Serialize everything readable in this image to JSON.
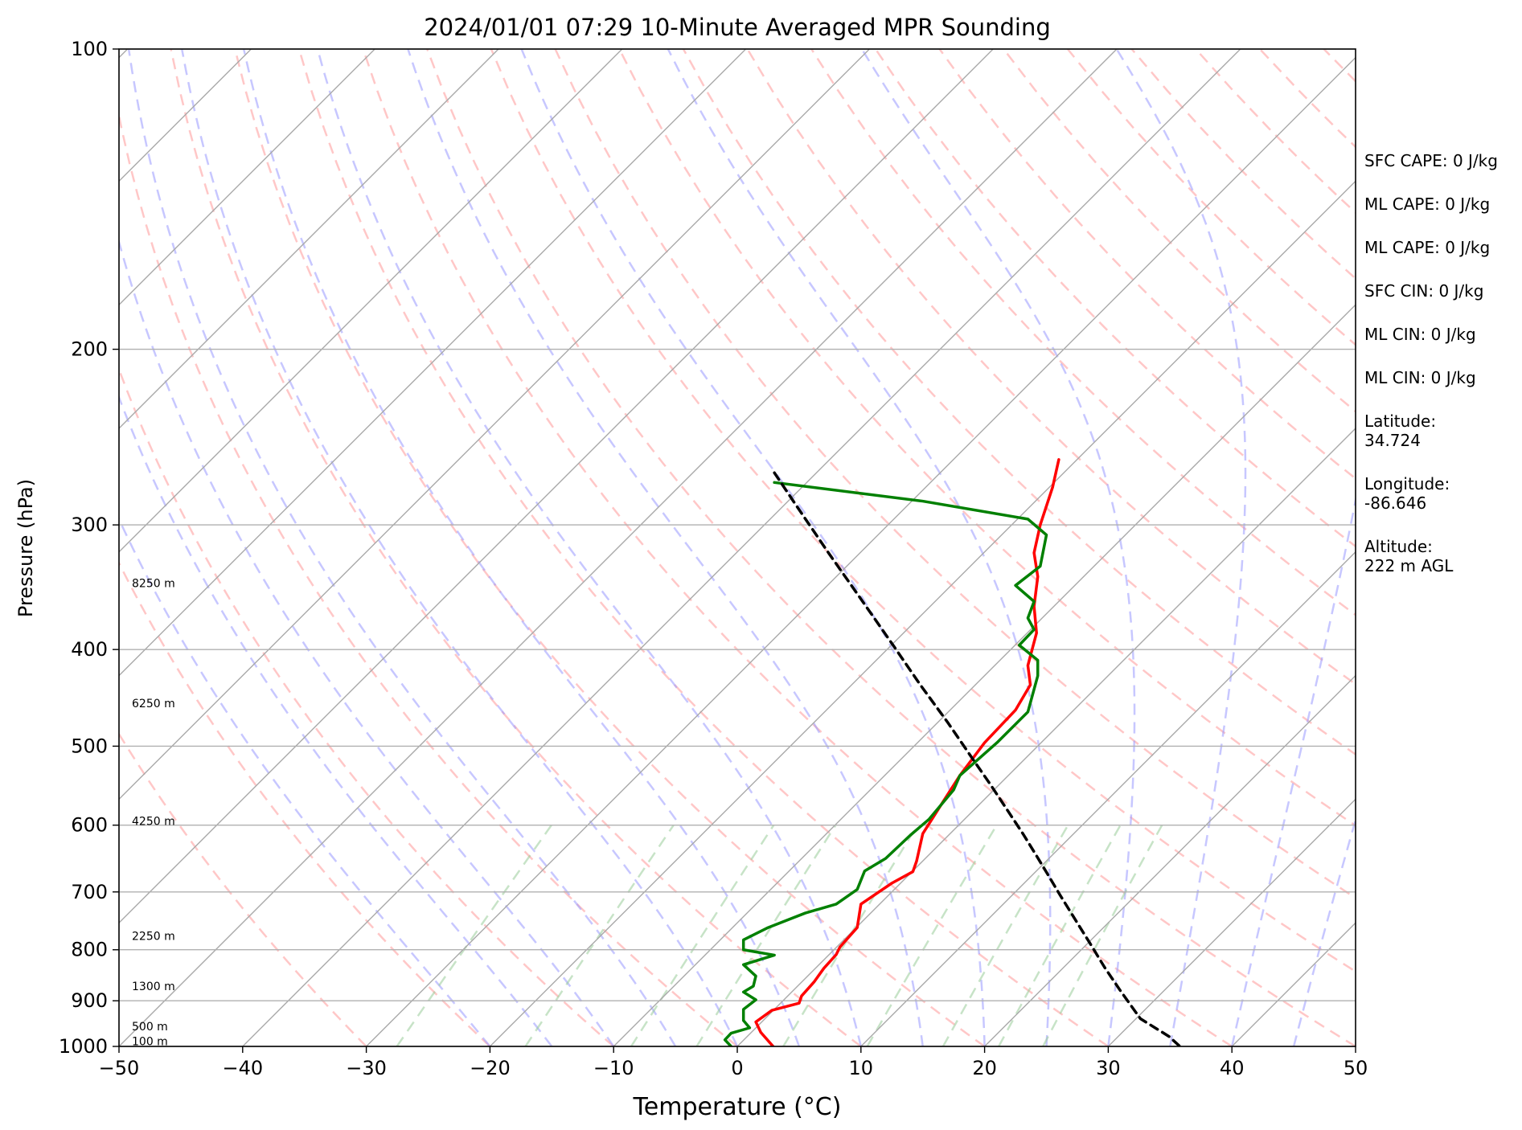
{
  "chart_data": {
    "type": "line",
    "title": "2024/01/01 07:29 10-Minute Averaged MPR Sounding",
    "xlabel": "Temperature (°C)",
    "ylabel": "Pressure (hPa)",
    "xlim": [
      -50,
      50
    ],
    "ylim": [
      1000,
      100
    ],
    "yscale": "log",
    "grid": true,
    "x_ticks": [
      "−50",
      "−40",
      "−30",
      "−20",
      "−10",
      "0",
      "10",
      "20",
      "30",
      "40",
      "50"
    ],
    "y_ticks": [
      "100",
      "200",
      "300",
      "400",
      "500",
      "600",
      "700",
      "800",
      "900",
      "1000"
    ],
    "height_labels": [
      {
        "text": "100 m",
        "pressure": 988
      },
      {
        "text": "500 m",
        "pressure": 955
      },
      {
        "text": "1300 m",
        "pressure": 870
      },
      {
        "text": "2250 m",
        "pressure": 775
      },
      {
        "text": "4250 m",
        "pressure": 594
      },
      {
        "text": "6250 m",
        "pressure": 453
      },
      {
        "text": "8250 m",
        "pressure": 343
      }
    ],
    "colors": {
      "temperature": "#ff0000",
      "dewpoint": "#008000",
      "parcel": "#000000",
      "isotherm": "#a9a9a9",
      "dry_adiabat": "#ff9999",
      "moist_adiabat": "#9999ff",
      "mixing_ratio": "#99cc99"
    },
    "series": [
      {
        "style": "solid",
        "color": "#ff0000",
        "points": [
          [
            26.0,
            258
          ],
          [
            25.5,
            275
          ],
          [
            24.5,
            300
          ],
          [
            24.0,
            320
          ],
          [
            24.3,
            338
          ],
          [
            24.0,
            362
          ],
          [
            24.2,
            385
          ],
          [
            23.5,
            415
          ],
          [
            23.7,
            434
          ],
          [
            22.5,
            460
          ],
          [
            20.0,
            496
          ],
          [
            18.0,
            535
          ],
          [
            16.5,
            572
          ],
          [
            15.0,
            612
          ],
          [
            14.5,
            652
          ],
          [
            14.2,
            668
          ],
          [
            12.5,
            686
          ],
          [
            10.0,
            720
          ],
          [
            9.7,
            760
          ],
          [
            8.3,
            795
          ],
          [
            8.0,
            809
          ],
          [
            7.0,
            835
          ],
          [
            6.2,
            862
          ],
          [
            5.2,
            890
          ],
          [
            5.0,
            905
          ],
          [
            2.8,
            920
          ],
          [
            1.5,
            945
          ],
          [
            1.9,
            968
          ],
          [
            2.9,
            1000
          ]
        ]
      },
      {
        "style": "solid",
        "color": "#008000",
        "points": [
          [
            3.0,
            272
          ],
          [
            15.0,
            284
          ],
          [
            23.5,
            296
          ],
          [
            25.0,
            307
          ],
          [
            24.5,
            330
          ],
          [
            22.5,
            345
          ],
          [
            24.0,
            358
          ],
          [
            23.5,
            372
          ],
          [
            24.0,
            382
          ],
          [
            22.8,
            396
          ],
          [
            24.3,
            410
          ],
          [
            24.3,
            425
          ],
          [
            23.5,
            462
          ],
          [
            21.0,
            496
          ],
          [
            18.0,
            535
          ],
          [
            17.5,
            553
          ],
          [
            15.5,
            592
          ],
          [
            14.0,
            614
          ],
          [
            12.0,
            648
          ],
          [
            10.3,
            667
          ],
          [
            9.7,
            696
          ],
          [
            8.0,
            720
          ],
          [
            5.5,
            735
          ],
          [
            2.5,
            760
          ],
          [
            0.5,
            782
          ],
          [
            0.5,
            800
          ],
          [
            3.0,
            810
          ],
          [
            0.5,
            828
          ],
          [
            1.5,
            850
          ],
          [
            1.3,
            870
          ],
          [
            0.5,
            882
          ],
          [
            1.5,
            898
          ],
          [
            0.5,
            918
          ],
          [
            0.5,
            942
          ],
          [
            1.0,
            958
          ],
          [
            -0.5,
            970
          ],
          [
            -1.0,
            985
          ],
          [
            -0.5,
            1000
          ]
        ]
      },
      {
        "style": "dashed",
        "color": "#000000",
        "points": [
          [
            3.0,
            266
          ],
          [
            4.7,
            286
          ],
          [
            7.3,
            319
          ],
          [
            10.0,
            356
          ],
          [
            12.6,
            396
          ],
          [
            14.8,
            434
          ],
          [
            17.0,
            473
          ],
          [
            18.9,
            512
          ],
          [
            20.5,
            547
          ],
          [
            21.9,
            581
          ],
          [
            23.1,
            612
          ],
          [
            24.1,
            641
          ],
          [
            25.1,
            672
          ],
          [
            26.1,
            705
          ],
          [
            27.5,
            752
          ],
          [
            28.6,
            791
          ],
          [
            29.7,
            833
          ],
          [
            31.0,
            880
          ],
          [
            32.6,
            938
          ],
          [
            34.9,
            977
          ],
          [
            35.8,
            1000
          ]
        ]
      }
    ]
  },
  "side_info": [
    "SFC CAPE: 0 J/kg",
    "ML CAPE: 0 J/kg",
    "ML CAPE: 0 J/kg",
    "SFC CIN: 0 J/kg",
    "ML CIN: 0 J/kg",
    "ML CIN: 0 J/kg",
    "Latitude:\n34.724",
    "Longitude:\n-86.646",
    "Altitude:\n222 m AGL"
  ]
}
